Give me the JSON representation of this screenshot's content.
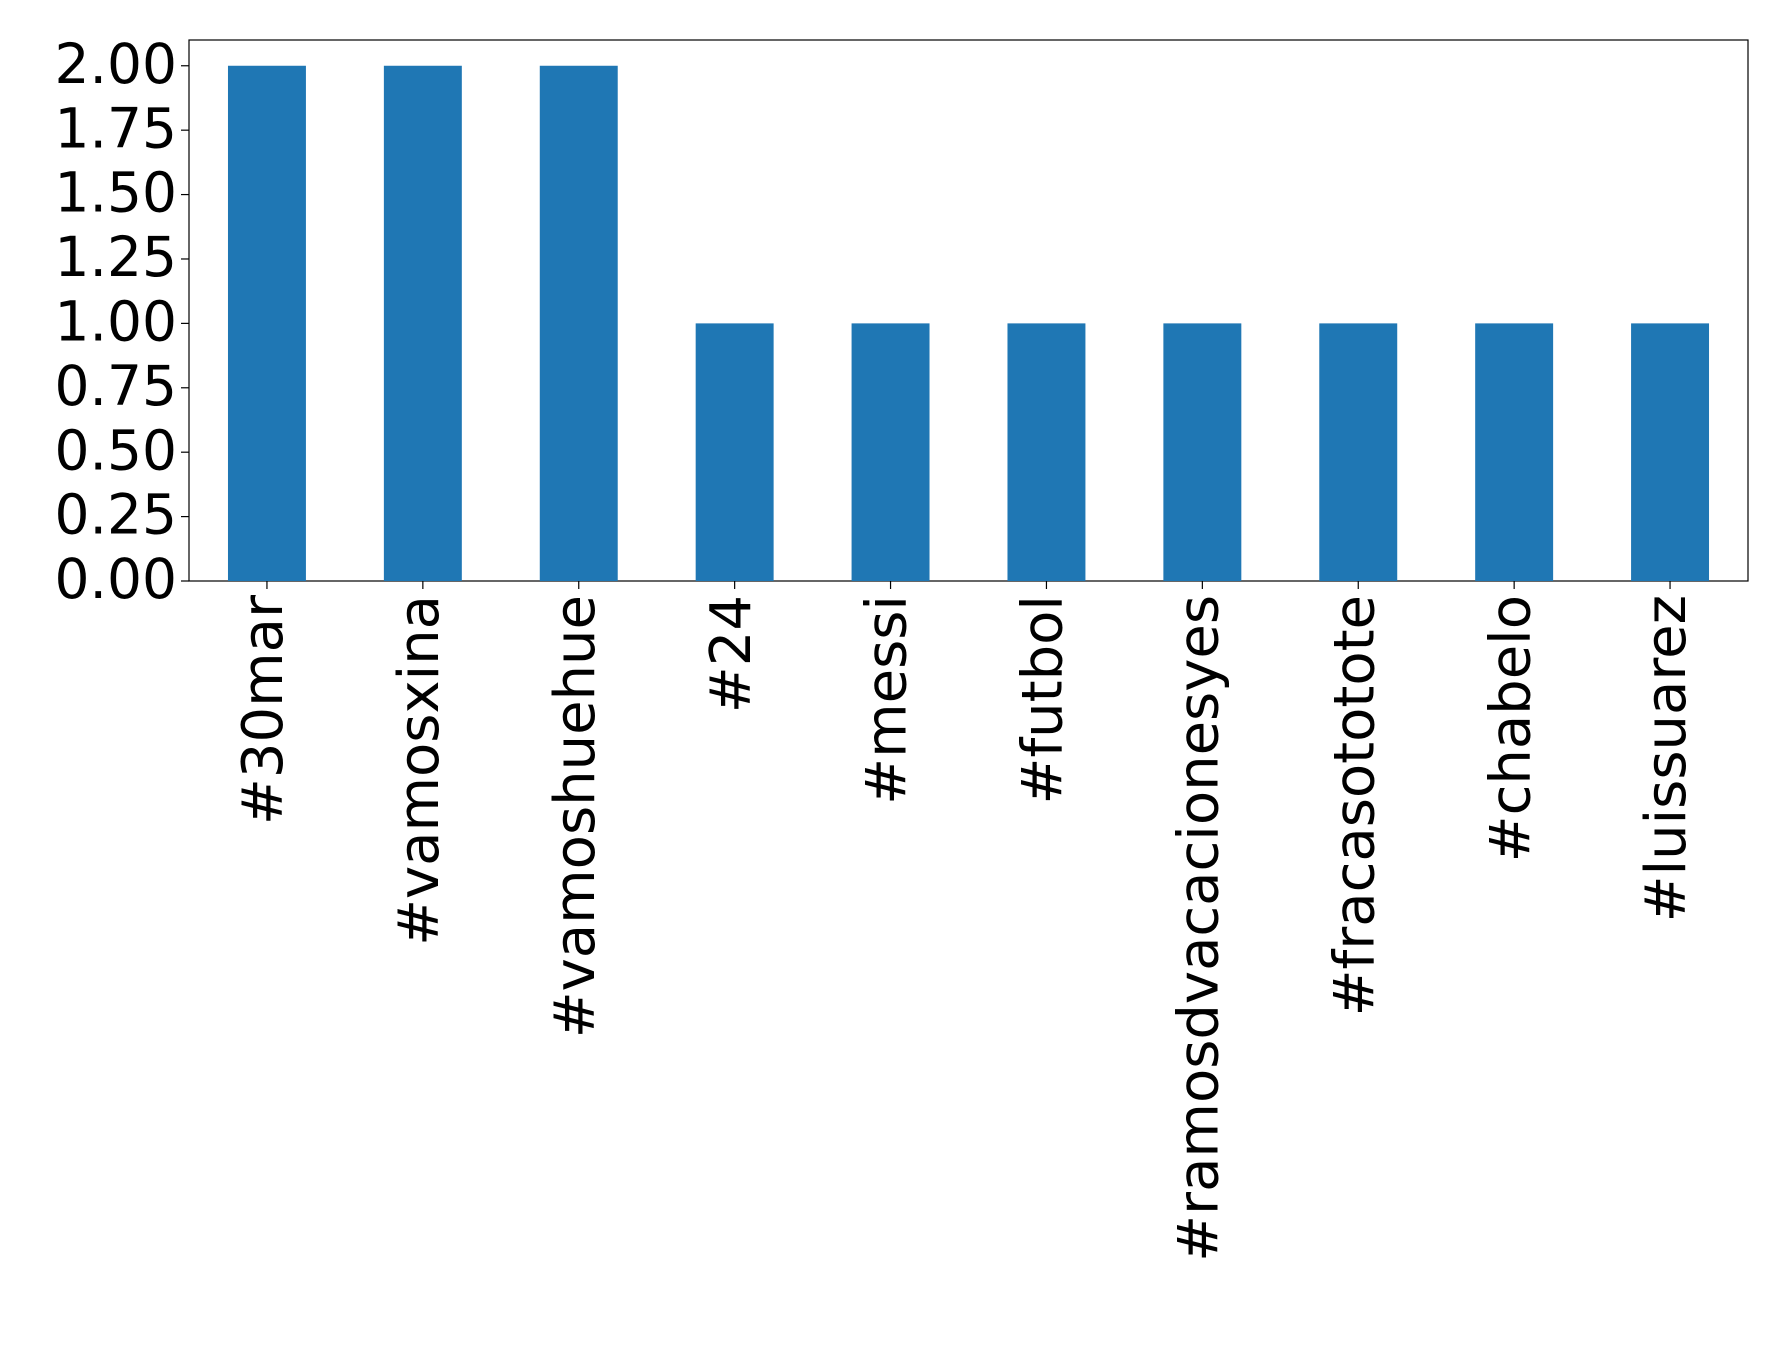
{
  "chart_data": {
    "type": "bar",
    "categories": [
      "#30mar",
      "#vamosxina",
      "#vamoshuehue",
      "#24",
      "#messi",
      "#futbol",
      "#ramosdvacacionesyes",
      "#fracasototote",
      "#chabelo",
      "#luissuarez"
    ],
    "values": [
      2,
      2,
      2,
      1,
      1,
      1,
      1,
      1,
      1,
      1
    ],
    "color": "#1f77b4",
    "ylim": [
      0,
      2.1
    ],
    "yticks": [
      {
        "value": 0,
        "label": "0.00"
      },
      {
        "value": 0.25,
        "label": "0.25"
      },
      {
        "value": 0.5,
        "label": "0.50"
      },
      {
        "value": 0.75,
        "label": "0.75"
      },
      {
        "value": 1,
        "label": "1.00"
      },
      {
        "value": 1.25,
        "label": "1.25"
      },
      {
        "value": 1.5,
        "label": "1.50"
      },
      {
        "value": 1.75,
        "label": "1.75"
      },
      {
        "value": 2,
        "label": "2.00"
      }
    ],
    "grid": false
  }
}
